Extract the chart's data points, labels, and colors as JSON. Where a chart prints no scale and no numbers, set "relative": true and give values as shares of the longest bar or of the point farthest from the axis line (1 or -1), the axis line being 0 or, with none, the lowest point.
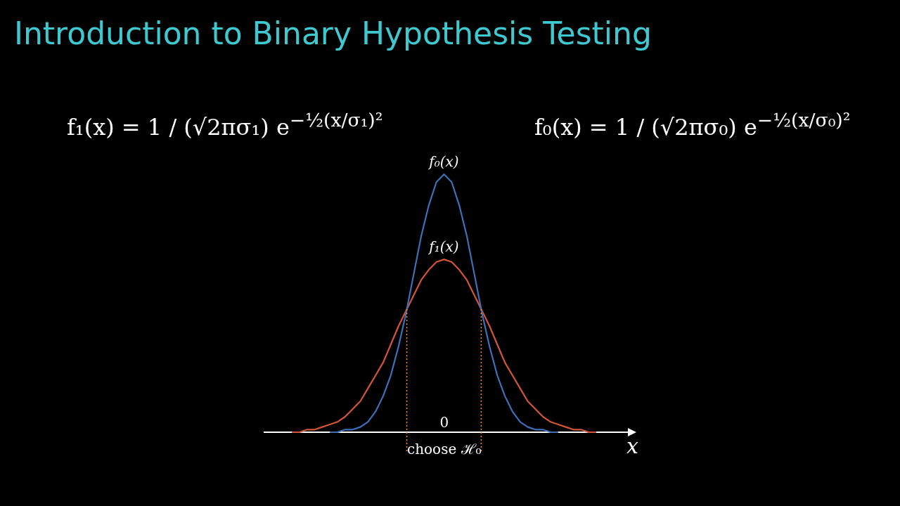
{
  "chart_data": {
    "type": "line",
    "title": "Introduction to Binary Hypothesis Testing",
    "xlabel": "x",
    "relative": true,
    "tick_labels": false,
    "marker": "none",
    "line_style": "solid",
    "categories": [
      null,
      null,
      null,
      null,
      null,
      null,
      null,
      null,
      null,
      null,
      null,
      null,
      null,
      null,
      null,
      null,
      null,
      null,
      null,
      null,
      null,
      null,
      null,
      null,
      null,
      null,
      null,
      null,
      null,
      null,
      null,
      null,
      null,
      null,
      null,
      null,
      null,
      null,
      null,
      null,
      null
    ],
    "series": [
      {
        "name": "f₀(x)",
        "color": "#3f6fb8",
        "values": [
          null,
          null,
          null,
          null,
          null,
          0,
          0,
          0.01,
          0.01,
          0.02,
          0.04,
          0.08,
          0.14,
          0.22,
          0.33,
          0.46,
          0.61,
          0.76,
          0.88,
          0.97,
          1,
          0.97,
          0.88,
          0.76,
          0.61,
          0.46,
          0.33,
          0.22,
          0.14,
          0.08,
          0.04,
          0.02,
          0.01,
          0.01,
          0,
          0,
          null,
          null,
          null,
          null,
          null
        ]
      },
      {
        "name": "f₁(x)",
        "color": "#d2553a",
        "values": [
          0,
          0,
          0.01,
          0.01,
          0.02,
          0.03,
          0.04,
          0.06,
          0.09,
          0.12,
          0.17,
          0.22,
          0.27,
          0.34,
          0.41,
          0.47,
          0.53,
          0.59,
          0.63,
          0.66,
          0.67,
          0.66,
          0.63,
          0.59,
          0.53,
          0.47,
          0.41,
          0.34,
          0.27,
          0.22,
          0.17,
          0.12,
          0.09,
          0.06,
          0.04,
          0.03,
          0.02,
          0.01,
          0.01,
          0,
          0
        ]
      }
    ],
    "annotations": [
      "f₁(x) = 1 / (√2πσ₁) e$^{−½(x/σ₁)²}$",
      "f₀(x) = 1 / (√2πσ₀) e$^{−½(x/σ₀)²}$",
      "choose ℋ₀",
      "0"
    ]
  }
}
